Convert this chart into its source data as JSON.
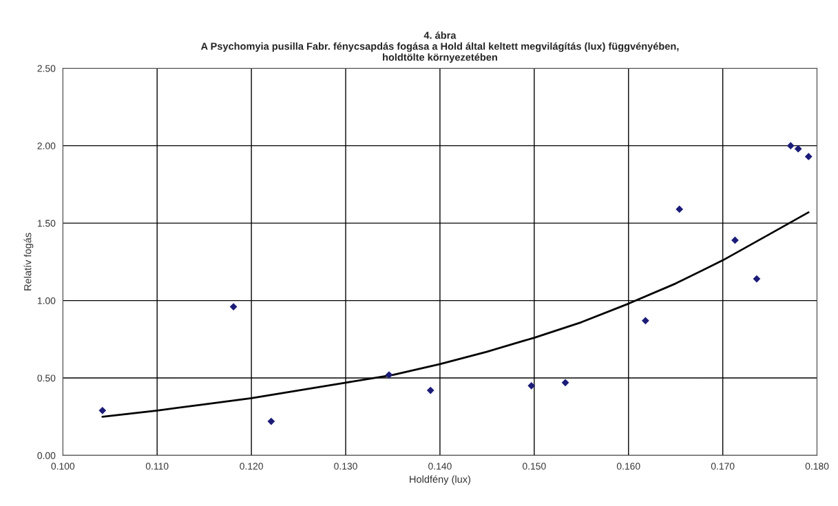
{
  "chart_data": {
    "type": "scatter",
    "title": "4. ábra\nA Psychomyia pusilla Fabr. fénycsapdás fogása a Hold által keltett megvilágítás (lux) függvényében,\nholdtölte környezetében",
    "xlabel": "Holdfény (lux)",
    "ylabel": "Relatív fogás",
    "xlim": [
      0.1,
      0.18
    ],
    "xticks": [
      {
        "value": 0.1,
        "label": "0.100"
      },
      {
        "value": 0.11,
        "label": "0.110"
      },
      {
        "value": 0.12,
        "label": "0.120"
      },
      {
        "value": 0.13,
        "label": "0.130"
      },
      {
        "value": 0.14,
        "label": "0.140"
      },
      {
        "value": 0.15,
        "label": "0.150"
      },
      {
        "value": 0.16,
        "label": "0.160"
      },
      {
        "value": 0.17,
        "label": "0.170"
      },
      {
        "value": 0.18,
        "label": "0.180"
      }
    ],
    "ylim": [
      0,
      2.5
    ],
    "yticks": [
      {
        "value": 0,
        "label": "0.00"
      },
      {
        "value": 0.5,
        "label": "0.50"
      },
      {
        "value": 1,
        "label": "1.00"
      },
      {
        "value": 1.5,
        "label": "1.50"
      },
      {
        "value": 2,
        "label": "2.00"
      },
      {
        "value": 2.5,
        "label": "2.50"
      }
    ],
    "grid": true,
    "series": [
      {
        "marker": "diamond",
        "color": "#1c1c78",
        "x": [
          0.1042,
          0.1181,
          0.1221,
          0.1346,
          0.139,
          0.1497,
          0.1533,
          0.1618,
          0.1654,
          0.1713,
          0.1736,
          0.1772,
          0.178,
          0.1791
        ],
        "values": [
          0.29,
          0.96,
          0.22,
          0.52,
          0.42,
          0.45,
          0.47,
          0.87,
          1.59,
          1.39,
          1.14,
          2.0,
          1.98,
          1.93
        ]
      },
      {
        "type": "line",
        "marker": "none",
        "line_style": "solid",
        "color": "#000000",
        "x": [
          0.1042,
          0.11,
          0.115,
          0.12,
          0.125,
          0.13,
          0.135,
          0.14,
          0.145,
          0.15,
          0.155,
          0.16,
          0.165,
          0.17,
          0.175,
          0.1791
        ],
        "values": [
          0.25,
          0.29,
          0.33,
          0.37,
          0.42,
          0.47,
          0.52,
          0.59,
          0.67,
          0.76,
          0.86,
          0.98,
          1.11,
          1.26,
          1.43,
          1.57
        ]
      }
    ]
  }
}
